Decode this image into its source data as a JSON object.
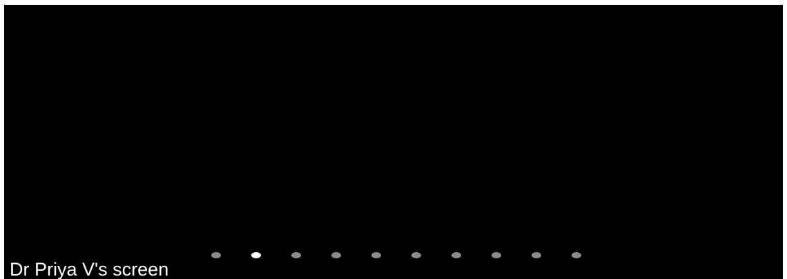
{
  "presenter": {
    "label": "Dr Priya V's screen"
  },
  "pager": {
    "total_pages": 10,
    "active_index": 1,
    "active_color": "#ffffff",
    "inactive_color": "#8c8c8c",
    "icon": "page-indicator-dot-icon"
  },
  "colors": {
    "background": "#000000"
  }
}
